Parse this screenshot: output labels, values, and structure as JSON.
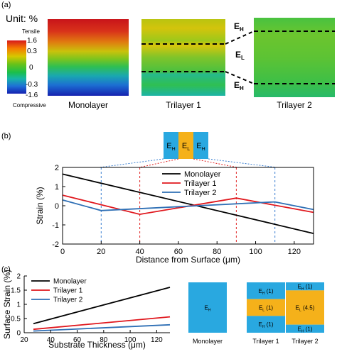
{
  "panel_a": {
    "label": "(a)",
    "unit_label": "Unit: %",
    "tensile_label": "Tensile",
    "compressive_label": "Compressive",
    "colorbar_ticks": [
      "1.6",
      "0.3",
      "0",
      "-0.3",
      "-1.6"
    ],
    "contours": [
      {
        "name": "Monolayer",
        "interfaces": []
      },
      {
        "name": "Trilayer 1",
        "interfaces": [
          "",
          ""
        ]
      },
      {
        "name": "Trilayer 2",
        "interfaces": [
          "",
          ""
        ]
      }
    ],
    "layer_labels": {
      "top": "E",
      "top_sub": "H",
      "mid": "E",
      "mid_sub": "L",
      "bot": "E",
      "bot_sub": "H"
    }
  },
  "panel_b": {
    "label": "(b)",
    "inset": [
      {
        "text": "E",
        "sub": "H",
        "color": "#29a8e0"
      },
      {
        "text": "E",
        "sub": "L",
        "color": "#f5b11a"
      },
      {
        "text": "E",
        "sub": "H",
        "color": "#29a8e0"
      }
    ]
  },
  "panel_c": {
    "label": "(c)",
    "schematics": [
      {
        "name": "Monolayer",
        "layers": [
          {
            "text": "E",
            "sub": "H",
            "suffix": "",
            "color": "#29a8e0",
            "frac": 1.0
          }
        ]
      },
      {
        "name": "Trilayer 1",
        "layers": [
          {
            "text": "E",
            "sub": "H",
            "suffix": " (1)",
            "color": "#29a8e0",
            "frac": 0.333
          },
          {
            "text": "E",
            "sub": "L",
            "suffix": " (1)",
            "color": "#f5b11a",
            "frac": 0.334
          },
          {
            "text": "E",
            "sub": "H",
            "suffix": " (1)",
            "color": "#29a8e0",
            "frac": 0.333
          }
        ]
      },
      {
        "name": "Trilayer 2",
        "layers": [
          {
            "text": "E",
            "sub": "H",
            "suffix": " (1)",
            "color": "#29a8e0",
            "frac": 0.16
          },
          {
            "text": "E",
            "sub": "L",
            "suffix": " (4.5)",
            "color": "#f5b11a",
            "frac": 0.68
          },
          {
            "text": "E",
            "sub": "H",
            "suffix": " (1)",
            "color": "#29a8e0",
            "frac": 0.16
          }
        ]
      }
    ]
  },
  "chart_data": [
    {
      "type": "line",
      "xlabel": "Distance from Surface (μm)",
      "ylabel": "Strain (%)",
      "xlim": [
        0,
        130
      ],
      "ylim": [
        -2,
        2
      ],
      "xticks": [
        "0",
        "20",
        "40",
        "60",
        "80",
        "100",
        "120"
      ],
      "yticks": [
        "2",
        "1",
        "0",
        "-1",
        "-2"
      ],
      "legend_position": "top-right",
      "vlines": [
        {
          "x": 20,
          "color": "#3a7fd1"
        },
        {
          "x": 40,
          "color": "#e02424"
        },
        {
          "x": 90,
          "color": "#e02424"
        },
        {
          "x": 110,
          "color": "#3a7fd1"
        }
      ],
      "series": [
        {
          "name": "Monolayer",
          "color": "#000000",
          "x": [
            0,
            130
          ],
          "y": [
            1.65,
            -1.45
          ]
        },
        {
          "name": "Trilayer 1",
          "color": "#e0171d",
          "x": [
            0,
            40,
            90,
            130
          ],
          "y": [
            0.55,
            -0.45,
            0.4,
            -0.35
          ]
        },
        {
          "name": "Trilayer 2",
          "color": "#2e6fb5",
          "x": [
            0,
            20,
            110,
            130
          ],
          "y": [
            0.3,
            -0.25,
            0.2,
            -0.2
          ]
        }
      ]
    },
    {
      "type": "line",
      "xlabel": "Substrate Thickness (μm)",
      "ylabel": "Surface Strain (%)",
      "xlim": [
        20,
        130
      ],
      "ylim": [
        0,
        2
      ],
      "xticks": [
        "20",
        "40",
        "60",
        "80",
        "100",
        "120"
      ],
      "yticks": [
        "0",
        "0.5",
        "1",
        "1.5",
        "2"
      ],
      "legend_position": "top-left",
      "series": [
        {
          "name": "Monolayer",
          "color": "#000000",
          "x": [
            27,
            130
          ],
          "y": [
            0.32,
            1.6
          ]
        },
        {
          "name": "Trilayer 1",
          "color": "#e0171d",
          "x": [
            27,
            130
          ],
          "y": [
            0.12,
            0.56
          ]
        },
        {
          "name": "Trilayer 2",
          "color": "#2e6fb5",
          "x": [
            27,
            130
          ],
          "y": [
            0.06,
            0.28
          ]
        }
      ]
    }
  ]
}
